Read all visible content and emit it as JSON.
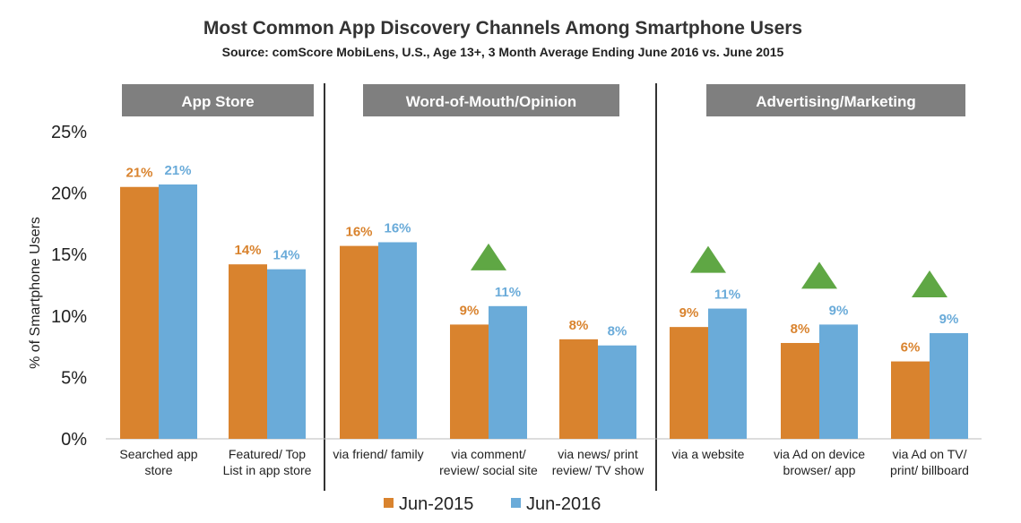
{
  "chart_data": {
    "type": "bar",
    "title": "Most Common App Discovery Channels Among Smartphone Users",
    "subtitle": "Source: comScore MobiLens, U.S., Age 13+, 3 Month Average Ending June 2016 vs. June 2015",
    "ylabel": "% of Smartphone Users",
    "ylim": [
      0,
      25
    ],
    "yticks": [
      "0%",
      "5%",
      "10%",
      "15%",
      "20%",
      "25%"
    ],
    "groups": [
      {
        "label": "App Store",
        "category_count": 2
      },
      {
        "label": "Word-of-Mouth/Opinion",
        "category_count": 3
      },
      {
        "label": "Advertising/Marketing",
        "category_count": 3
      }
    ],
    "categories": [
      [
        "Searched app",
        "store"
      ],
      [
        "Featured/ Top",
        "List in app store"
      ],
      [
        "via friend/ family"
      ],
      [
        "via comment/",
        "review/ social site"
      ],
      [
        "via news/ print",
        "review/ TV show"
      ],
      [
        "via a website"
      ],
      [
        "via Ad on device",
        "browser/ app"
      ],
      [
        "via Ad on TV/",
        "print/ billboard"
      ]
    ],
    "series": [
      {
        "name": "Jun-2015",
        "color": "#D9832E",
        "values": [
          20.5,
          14.2,
          15.7,
          9.3,
          8.1,
          9.1,
          7.8,
          6.3
        ],
        "labels": [
          "21%",
          "14%",
          "16%",
          "9%",
          "8%",
          "9%",
          "8%",
          "6%"
        ]
      },
      {
        "name": "Jun-2016",
        "color": "#6AABD9",
        "values": [
          20.7,
          13.8,
          16.0,
          10.8,
          7.6,
          10.6,
          9.3,
          8.6
        ],
        "labels": [
          "21%",
          "14%",
          "16%",
          "11%",
          "8%",
          "11%",
          "9%",
          "9%"
        ]
      }
    ],
    "increase_marker_categories": [
      3,
      5,
      6,
      7
    ],
    "increase_marker_color": "#5FA744",
    "group_header_color": "#7F7F7F",
    "legend_position": "bottom",
    "grid": false
  }
}
